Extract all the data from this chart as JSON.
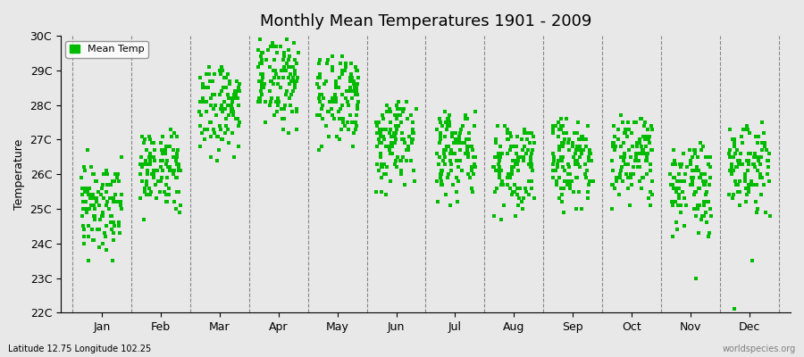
{
  "title": "Monthly Mean Temperatures 1901 - 2009",
  "ylabel": "Temperature",
  "xlabel": "",
  "bg_color": "#e8e8e8",
  "plot_bg_color": "#e8e8e8",
  "marker_color": "#00bb00",
  "marker": "s",
  "marker_size": 3,
  "legend_label": "Mean Temp",
  "ylim": [
    22,
    30
  ],
  "yticks": [
    22,
    23,
    24,
    25,
    26,
    27,
    28,
    29,
    30
  ],
  "ytick_labels": [
    "22C",
    "23C",
    "24C",
    "25C",
    "26C",
    "27C",
    "28C",
    "29C",
    "30C"
  ],
  "months": [
    "Jan",
    "Feb",
    "Mar",
    "Apr",
    "May",
    "Jun",
    "Jul",
    "Aug",
    "Sep",
    "Oct",
    "Nov",
    "Dec"
  ],
  "footnote_left": "Latitude 12.75 Longitude 102.25",
  "footnote_right": "worldspecies.org",
  "monthly_data": {
    "Jan": [
      25.8,
      25.2,
      24.8,
      25.1,
      25.5,
      26.7,
      26.2,
      25.9,
      26.1,
      25.7,
      25.4,
      26.5,
      26.0,
      25.3,
      24.5,
      24.2,
      24.8,
      24.0,
      23.9,
      24.1,
      24.5,
      25.0,
      25.4,
      25.2,
      24.7,
      24.3,
      25.0,
      24.8,
      24.2,
      24.5,
      23.8,
      23.5,
      24.0,
      25.1,
      25.4,
      25.8,
      26.0,
      25.5,
      25.3,
      25.1,
      24.9,
      25.6,
      25.2,
      24.6,
      24.4,
      25.0,
      25.3,
      25.7,
      26.0,
      25.4,
      25.0,
      24.6,
      24.3,
      25.2,
      25.5,
      25.8,
      26.1,
      25.4,
      25.0,
      24.7,
      24.4,
      25.1,
      25.4,
      25.8,
      26.0,
      25.3,
      24.9,
      24.5,
      24.2,
      25.0,
      25.3,
      25.6,
      25.9,
      25.2,
      24.8,
      24.4,
      24.1,
      25.0,
      25.3,
      25.6,
      25.9,
      25.2,
      24.8,
      24.4,
      24.1,
      25.0,
      25.3,
      25.7,
      26.0,
      25.4,
      25.0,
      24.6,
      23.5,
      24.3,
      25.2,
      25.6,
      24.9,
      24.4,
      24.8,
      25.2,
      25.6,
      26.0,
      25.1,
      24.8,
      24.5,
      25.1,
      25.5,
      25.8,
      26.2
    ],
    "Feb": [
      26.3,
      26.0,
      25.8,
      26.2,
      26.5,
      26.8,
      26.4,
      26.0,
      26.3,
      26.6,
      26.1,
      26.7,
      26.3,
      26.0,
      25.6,
      25.4,
      25.8,
      25.2,
      25.0,
      25.3,
      25.8,
      26.1,
      26.5,
      26.3,
      25.9,
      25.5,
      26.1,
      25.9,
      25.4,
      25.7,
      25.1,
      24.9,
      25.4,
      26.2,
      26.5,
      26.9,
      27.1,
      26.6,
      26.4,
      26.2,
      26.0,
      26.7,
      26.3,
      25.7,
      25.5,
      26.1,
      26.4,
      26.8,
      27.1,
      26.5,
      26.1,
      25.7,
      25.4,
      26.3,
      26.6,
      26.9,
      27.2,
      26.5,
      26.1,
      25.8,
      25.5,
      26.2,
      26.5,
      26.9,
      27.1,
      26.4,
      26.0,
      25.6,
      25.3,
      26.1,
      26.4,
      26.7,
      27.0,
      26.3,
      25.9,
      25.5,
      25.2,
      26.1,
      26.4,
      26.7,
      27.0,
      26.3,
      25.9,
      25.5,
      25.2,
      26.1,
      26.4,
      26.8,
      27.1,
      26.5,
      26.1,
      25.7,
      24.7,
      25.4,
      26.3,
      26.7,
      26.0,
      25.5,
      25.9,
      26.3,
      26.7,
      27.1,
      26.2,
      25.9,
      25.6,
      26.2,
      26.6,
      26.9,
      27.3
    ],
    "Mar": [
      28.5,
      28.2,
      28.8,
      29.0,
      28.6,
      28.3,
      28.7,
      29.1,
      28.4,
      28.0,
      27.6,
      27.2,
      27.8,
      27.4,
      27.0,
      26.7,
      27.3,
      26.9,
      26.5,
      26.8,
      27.4,
      27.8,
      28.2,
      28.0,
      27.6,
      27.2,
      27.8,
      27.6,
      27.1,
      27.4,
      26.8,
      26.5,
      27.1,
      28.0,
      28.3,
      28.7,
      28.9,
      28.4,
      28.2,
      28.0,
      27.8,
      28.5,
      28.1,
      27.5,
      27.3,
      27.9,
      28.2,
      28.6,
      28.9,
      28.3,
      27.9,
      27.5,
      27.2,
      28.1,
      28.4,
      28.7,
      29.0,
      28.3,
      27.9,
      27.6,
      27.3,
      28.0,
      28.3,
      28.7,
      28.9,
      28.2,
      27.8,
      27.4,
      27.1,
      27.9,
      28.2,
      28.5,
      28.8,
      28.1,
      27.7,
      27.3,
      27.0,
      27.9,
      28.2,
      28.5,
      28.8,
      28.1,
      27.7,
      27.3,
      27.0,
      27.9,
      28.2,
      28.6,
      28.9,
      28.3,
      27.9,
      27.5,
      26.4,
      27.2,
      28.1,
      28.5,
      27.8,
      27.3,
      27.7,
      28.1,
      28.5,
      28.9,
      28.0,
      27.7,
      27.4,
      28.0,
      28.4,
      28.7,
      29.1
    ],
    "Apr": [
      29.3,
      29.0,
      29.6,
      29.8,
      29.4,
      29.1,
      29.5,
      29.9,
      29.2,
      28.8,
      28.4,
      28.0,
      28.6,
      28.2,
      27.8,
      27.5,
      28.1,
      27.7,
      27.3,
      27.6,
      28.2,
      28.6,
      29.0,
      28.8,
      28.4,
      28.0,
      28.6,
      28.4,
      27.9,
      28.2,
      27.6,
      27.3,
      27.9,
      28.8,
      29.1,
      29.5,
      29.7,
      29.2,
      29.0,
      28.8,
      28.6,
      29.3,
      28.9,
      28.3,
      28.1,
      28.7,
      29.0,
      29.4,
      29.7,
      29.1,
      28.7,
      28.3,
      28.0,
      28.9,
      29.2,
      29.5,
      29.8,
      29.1,
      28.7,
      28.4,
      28.1,
      28.8,
      29.1,
      29.5,
      29.7,
      29.0,
      28.6,
      28.2,
      27.9,
      28.7,
      29.0,
      29.3,
      29.6,
      28.9,
      28.5,
      28.1,
      27.8,
      28.7,
      29.0,
      29.3,
      29.6,
      28.9,
      28.5,
      28.1,
      27.8,
      28.7,
      29.0,
      29.4,
      29.7,
      29.1,
      28.7,
      28.3,
      27.2,
      28.0,
      28.9,
      29.3,
      28.6,
      28.1,
      28.5,
      28.9,
      29.3,
      29.7,
      28.8,
      28.5,
      28.2,
      28.8,
      29.2,
      29.5,
      29.9
    ],
    "May": [
      28.8,
      28.5,
      29.1,
      29.3,
      28.9,
      28.6,
      29.0,
      29.4,
      28.7,
      28.3,
      27.9,
      27.5,
      28.1,
      27.7,
      27.3,
      27.0,
      27.6,
      27.2,
      26.8,
      27.1,
      27.7,
      28.1,
      28.5,
      28.3,
      27.9,
      27.5,
      28.1,
      27.9,
      27.4,
      27.7,
      27.1,
      26.8,
      27.4,
      28.3,
      28.6,
      29.0,
      29.2,
      28.7,
      28.5,
      28.3,
      28.1,
      28.8,
      28.4,
      27.8,
      27.6,
      28.2,
      28.5,
      28.9,
      29.2,
      28.6,
      28.2,
      27.8,
      27.5,
      28.4,
      28.7,
      29.0,
      29.3,
      28.6,
      28.2,
      27.9,
      27.6,
      28.3,
      28.6,
      29.0,
      29.2,
      28.5,
      28.1,
      27.7,
      27.4,
      28.2,
      28.5,
      28.8,
      29.1,
      28.4,
      28.0,
      27.6,
      27.3,
      28.2,
      28.5,
      28.8,
      29.1,
      28.4,
      28.0,
      27.6,
      27.3,
      28.2,
      28.5,
      28.9,
      29.2,
      28.6,
      28.2,
      27.8,
      26.7,
      27.5,
      28.4,
      28.8,
      28.1,
      27.6,
      28.0,
      28.4,
      28.8,
      29.2,
      28.3,
      28.0,
      27.7,
      28.3,
      28.7,
      29.0,
      29.4
    ],
    "Jun": [
      27.5,
      27.2,
      27.8,
      28.0,
      27.6,
      27.3,
      27.7,
      28.1,
      27.4,
      27.0,
      26.6,
      26.2,
      26.8,
      26.4,
      26.0,
      25.7,
      26.3,
      25.9,
      25.5,
      25.8,
      26.4,
      26.8,
      27.2,
      27.0,
      26.6,
      26.2,
      26.8,
      26.6,
      26.1,
      26.4,
      25.8,
      25.5,
      26.1,
      27.0,
      27.3,
      27.7,
      27.9,
      27.4,
      27.2,
      27.0,
      26.8,
      27.5,
      27.1,
      26.5,
      26.3,
      26.9,
      27.2,
      27.6,
      27.9,
      27.3,
      26.9,
      26.5,
      26.2,
      27.1,
      27.4,
      27.7,
      28.0,
      27.3,
      26.9,
      26.6,
      26.3,
      27.0,
      27.3,
      27.7,
      27.9,
      27.2,
      26.8,
      26.4,
      26.1,
      26.9,
      27.2,
      27.5,
      27.8,
      27.1,
      26.7,
      26.3,
      26.0,
      26.9,
      27.2,
      27.5,
      27.8,
      27.1,
      26.7,
      26.3,
      26.0,
      26.9,
      27.2,
      27.6,
      27.9,
      27.3,
      26.9,
      26.5,
      25.4,
      26.2,
      27.1,
      27.5,
      26.8,
      26.3,
      26.7,
      27.1,
      27.5,
      27.9,
      27.0,
      26.7,
      26.4,
      27.0,
      27.4,
      27.7,
      28.1
    ],
    "Jul": [
      27.2,
      26.9,
      27.5,
      27.7,
      27.3,
      27.0,
      27.4,
      27.8,
      27.1,
      26.7,
      26.3,
      25.9,
      26.5,
      26.1,
      25.7,
      25.4,
      26.0,
      25.6,
      25.2,
      25.5,
      26.1,
      26.5,
      26.9,
      26.7,
      26.3,
      25.9,
      26.5,
      26.3,
      25.8,
      26.1,
      25.5,
      25.2,
      25.8,
      26.7,
      27.0,
      27.4,
      27.6,
      27.1,
      26.9,
      26.7,
      26.5,
      27.2,
      26.8,
      26.2,
      26.0,
      26.6,
      26.9,
      27.3,
      27.6,
      27.0,
      26.6,
      26.2,
      25.9,
      26.8,
      27.1,
      27.4,
      27.7,
      27.0,
      26.6,
      26.3,
      26.0,
      26.7,
      27.0,
      27.4,
      27.6,
      26.9,
      26.5,
      26.1,
      25.8,
      26.6,
      26.9,
      27.2,
      27.5,
      26.8,
      26.4,
      26.0,
      25.7,
      26.6,
      26.9,
      27.2,
      27.5,
      26.8,
      26.4,
      26.0,
      25.7,
      26.6,
      26.9,
      27.3,
      27.6,
      27.0,
      26.6,
      26.2,
      25.1,
      25.9,
      26.8,
      27.2,
      26.5,
      26.0,
      26.4,
      26.8,
      27.2,
      27.6,
      26.7,
      26.4,
      26.1,
      26.7,
      27.1,
      27.4,
      27.8
    ],
    "Aug": [
      26.8,
      26.5,
      27.1,
      27.3,
      26.9,
      26.6,
      27.0,
      27.4,
      26.7,
      26.3,
      25.9,
      25.5,
      26.1,
      25.7,
      25.3,
      25.0,
      25.6,
      25.2,
      24.8,
      25.1,
      25.7,
      26.1,
      26.5,
      26.3,
      25.9,
      25.5,
      26.1,
      25.9,
      25.4,
      25.7,
      25.1,
      24.8,
      25.4,
      26.3,
      26.6,
      27.0,
      27.2,
      26.7,
      26.5,
      26.3,
      26.1,
      26.8,
      26.4,
      25.8,
      25.6,
      26.2,
      26.5,
      26.9,
      27.2,
      26.6,
      26.2,
      25.8,
      25.5,
      26.4,
      26.7,
      27.0,
      27.3,
      26.6,
      26.2,
      25.9,
      25.6,
      26.3,
      26.6,
      27.0,
      27.2,
      26.5,
      26.1,
      25.7,
      25.4,
      26.2,
      26.5,
      26.8,
      27.1,
      26.4,
      26.0,
      25.6,
      25.3,
      26.2,
      26.5,
      26.8,
      27.1,
      26.4,
      26.0,
      25.6,
      25.3,
      26.2,
      26.5,
      26.9,
      27.2,
      26.6,
      26.2,
      25.8,
      24.7,
      25.5,
      26.4,
      26.8,
      26.1,
      25.6,
      26.0,
      26.4,
      26.8,
      27.2,
      26.3,
      26.0,
      25.7,
      26.3,
      26.7,
      27.0,
      27.4
    ],
    "Sep": [
      27.0,
      26.7,
      27.3,
      27.5,
      27.1,
      26.8,
      27.2,
      27.6,
      26.9,
      26.5,
      26.1,
      25.7,
      26.3,
      25.9,
      25.5,
      25.2,
      25.8,
      25.4,
      25.0,
      25.3,
      25.9,
      26.3,
      26.7,
      26.5,
      26.1,
      25.7,
      26.3,
      26.1,
      25.6,
      25.9,
      25.3,
      25.0,
      25.6,
      26.5,
      26.8,
      27.2,
      27.4,
      26.9,
      26.7,
      26.5,
      26.3,
      27.0,
      26.6,
      26.0,
      25.8,
      26.4,
      26.7,
      27.1,
      27.4,
      26.8,
      26.4,
      26.0,
      25.7,
      26.6,
      26.9,
      27.2,
      27.5,
      26.8,
      26.4,
      26.1,
      25.8,
      26.5,
      26.8,
      27.2,
      27.4,
      26.7,
      26.3,
      25.9,
      25.6,
      26.4,
      26.7,
      27.0,
      27.3,
      26.6,
      26.2,
      25.8,
      25.5,
      26.4,
      26.7,
      27.0,
      27.3,
      26.6,
      26.2,
      25.8,
      25.5,
      26.4,
      26.7,
      27.1,
      27.4,
      26.8,
      26.4,
      26.0,
      24.9,
      25.7,
      26.6,
      27.0,
      26.3,
      25.8,
      26.2,
      26.6,
      27.0,
      27.4,
      26.5,
      26.2,
      25.9,
      26.5,
      26.9,
      27.2,
      27.6
    ],
    "Oct": [
      27.1,
      26.8,
      27.4,
      27.6,
      27.2,
      26.9,
      27.3,
      27.7,
      27.0,
      26.6,
      26.2,
      25.8,
      26.4,
      26.0,
      25.6,
      25.3,
      25.9,
      25.5,
      25.1,
      25.4,
      26.0,
      26.4,
      26.8,
      26.6,
      26.2,
      25.8,
      26.4,
      26.2,
      25.7,
      26.0,
      25.4,
      25.1,
      25.7,
      26.6,
      26.9,
      27.3,
      27.5,
      27.0,
      26.8,
      26.6,
      26.4,
      27.1,
      26.7,
      26.1,
      25.9,
      26.5,
      26.8,
      27.2,
      27.5,
      26.9,
      26.5,
      26.1,
      25.8,
      26.7,
      27.0,
      27.3,
      27.6,
      26.9,
      26.5,
      26.2,
      25.9,
      26.6,
      26.9,
      27.3,
      27.5,
      26.8,
      26.4,
      26.0,
      25.7,
      26.5,
      26.8,
      27.1,
      27.4,
      26.7,
      26.3,
      25.9,
      25.6,
      26.5,
      26.8,
      27.1,
      27.4,
      26.7,
      26.3,
      25.9,
      25.6,
      26.5,
      26.8,
      27.2,
      27.5,
      26.9,
      26.5,
      26.1,
      25.0,
      25.8,
      26.7,
      27.1,
      26.4,
      25.9,
      26.3,
      26.7,
      27.1,
      27.5,
      26.6,
      26.3,
      26.0,
      26.6,
      27.0,
      27.3,
      27.7
    ],
    "Nov": [
      26.5,
      26.2,
      25.5,
      25.9,
      26.3,
      25.8,
      25.4,
      25.1,
      24.8,
      24.5,
      24.2,
      25.0,
      25.5,
      25.2,
      24.8,
      24.4,
      25.1,
      24.7,
      24.3,
      24.6,
      25.2,
      25.6,
      26.0,
      25.8,
      25.4,
      25.0,
      25.6,
      25.4,
      24.9,
      25.2,
      24.6,
      24.3,
      24.9,
      25.8,
      26.1,
      26.5,
      26.7,
      26.2,
      26.0,
      25.8,
      25.6,
      26.3,
      25.9,
      25.3,
      25.1,
      25.7,
      26.0,
      26.4,
      26.7,
      26.1,
      25.7,
      25.3,
      25.0,
      25.9,
      26.2,
      26.5,
      26.8,
      26.1,
      25.7,
      25.4,
      25.1,
      25.8,
      26.1,
      26.5,
      26.7,
      26.0,
      25.6,
      25.2,
      24.9,
      25.7,
      26.0,
      26.3,
      26.6,
      25.9,
      25.5,
      25.1,
      24.8,
      25.7,
      26.0,
      26.3,
      26.6,
      25.9,
      25.5,
      25.1,
      24.8,
      25.7,
      26.0,
      26.4,
      26.7,
      26.1,
      25.7,
      25.3,
      23.0,
      24.2,
      25.9,
      26.3,
      25.6,
      25.1,
      25.5,
      25.9,
      26.3,
      26.7,
      25.8,
      25.5,
      25.2,
      25.8,
      26.2,
      26.5,
      26.9
    ],
    "Dec": [
      26.8,
      26.5,
      26.1,
      26.5,
      26.9,
      26.4,
      26.0,
      25.7,
      25.4,
      25.1,
      24.8,
      25.6,
      26.1,
      25.8,
      25.4,
      25.0,
      25.7,
      25.3,
      24.9,
      25.2,
      25.8,
      26.2,
      26.6,
      26.4,
      26.0,
      25.6,
      26.2,
      26.0,
      25.5,
      25.8,
      25.2,
      24.9,
      25.5,
      26.4,
      26.7,
      27.1,
      27.3,
      26.8,
      26.6,
      26.4,
      26.2,
      26.9,
      26.5,
      25.9,
      25.7,
      26.3,
      26.6,
      27.0,
      27.3,
      26.7,
      26.3,
      25.9,
      25.6,
      26.5,
      26.8,
      27.1,
      27.4,
      26.7,
      26.3,
      26.0,
      25.7,
      26.4,
      26.7,
      27.1,
      27.3,
      26.6,
      26.2,
      25.8,
      25.5,
      26.3,
      26.6,
      26.9,
      27.2,
      26.5,
      26.1,
      25.7,
      25.4,
      26.3,
      26.6,
      26.9,
      27.2,
      26.5,
      26.1,
      25.7,
      25.4,
      26.3,
      26.6,
      27.0,
      27.3,
      26.7,
      26.3,
      25.9,
      22.1,
      23.5,
      26.5,
      26.9,
      26.2,
      25.7,
      26.1,
      26.5,
      26.9,
      27.3,
      26.4,
      26.1,
      25.8,
      26.4,
      26.8,
      27.1,
      27.5
    ]
  }
}
